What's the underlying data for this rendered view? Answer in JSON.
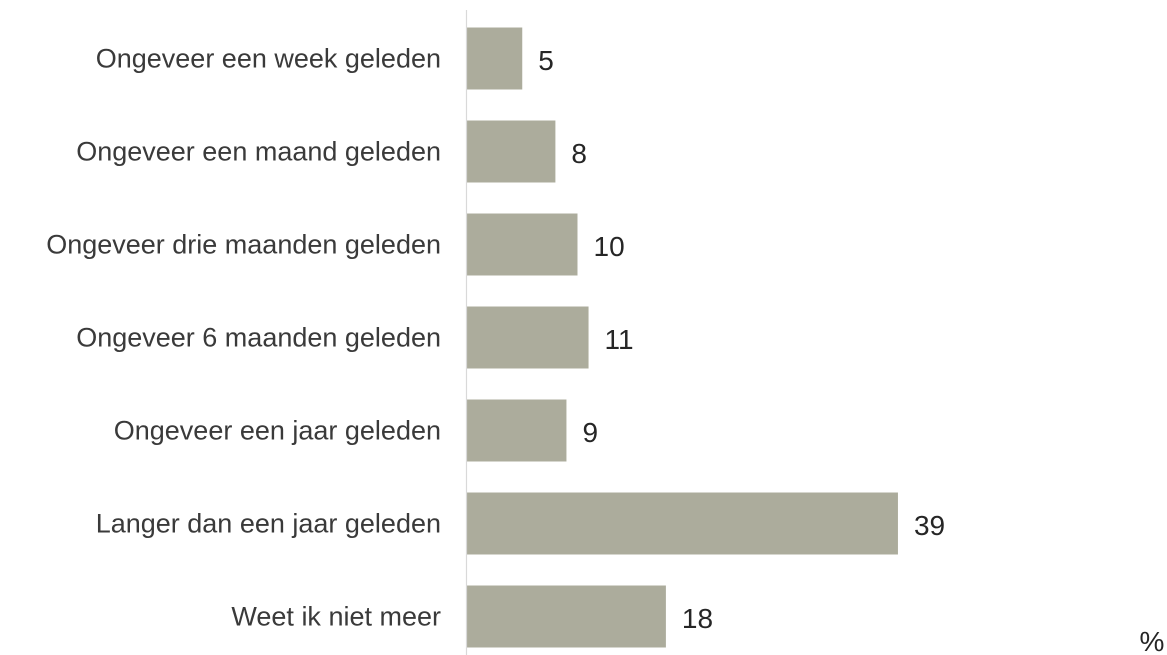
{
  "chart_data": {
    "type": "bar",
    "orientation": "horizontal",
    "categories": [
      "Ongeveer een week geleden",
      "Ongeveer een maand geleden",
      "Ongeveer drie maanden geleden",
      "Ongeveer 6 maanden geleden",
      "Ongeveer een jaar geleden",
      "Langer dan een jaar geleden",
      "Weet ik niet meer"
    ],
    "values": [
      5,
      8,
      10,
      11,
      9,
      39,
      18
    ],
    "unit_label": "%",
    "xlim": [
      0,
      42
    ],
    "grid": false,
    "legend": "none",
    "bar_color": "#acac9c",
    "axis_color": "#d9d9d9"
  }
}
